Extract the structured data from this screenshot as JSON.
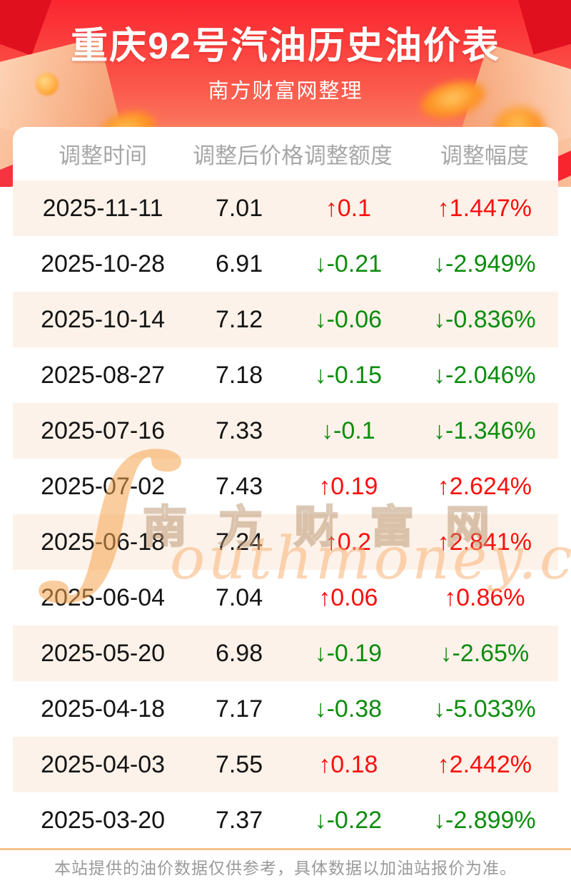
{
  "header": {
    "title": "重庆92号汽油历史油价表",
    "subtitle": "南方财富网整理"
  },
  "table": {
    "columns": [
      "调整时间",
      "调整后价格",
      "调整额度",
      "调整幅度"
    ],
    "rows": [
      {
        "date": "2025-11-11",
        "price": "7.01",
        "change": "↑0.1",
        "percent": "↑1.447%",
        "direction": "up"
      },
      {
        "date": "2025-10-28",
        "price": "6.91",
        "change": "↓-0.21",
        "percent": "↓-2.949%",
        "direction": "down"
      },
      {
        "date": "2025-10-14",
        "price": "7.12",
        "change": "↓-0.06",
        "percent": "↓-0.836%",
        "direction": "down"
      },
      {
        "date": "2025-08-27",
        "price": "7.18",
        "change": "↓-0.15",
        "percent": "↓-2.046%",
        "direction": "down"
      },
      {
        "date": "2025-07-16",
        "price": "7.33",
        "change": "↓-0.1",
        "percent": "↓-1.346%",
        "direction": "down"
      },
      {
        "date": "2025-07-02",
        "price": "7.43",
        "change": "↑0.19",
        "percent": "↑2.624%",
        "direction": "up"
      },
      {
        "date": "2025-06-18",
        "price": "7.24",
        "change": "↑0.2",
        "percent": "↑2.841%",
        "direction": "up"
      },
      {
        "date": "2025-06-04",
        "price": "7.04",
        "change": "↑0.06",
        "percent": "↑0.86%",
        "direction": "up"
      },
      {
        "date": "2025-05-20",
        "price": "6.98",
        "change": "↓-0.19",
        "percent": "↓-2.65%",
        "direction": "down"
      },
      {
        "date": "2025-04-18",
        "price": "7.17",
        "change": "↓-0.38",
        "percent": "↓-5.033%",
        "direction": "down"
      },
      {
        "date": "2025-04-03",
        "price": "7.55",
        "change": "↑0.18",
        "percent": "↑2.442%",
        "direction": "up"
      },
      {
        "date": "2025-03-20",
        "price": "7.37",
        "change": "↓-0.22",
        "percent": "↓-2.899%",
        "direction": "down"
      }
    ]
  },
  "watermark": {
    "swoosh_glyph": "∫",
    "cjk": "南方财富网",
    "latin": "outhmoney.com"
  },
  "footer": {
    "note": "本站提供的油价数据仅供参考，具体数据以加油站报价为准。"
  },
  "colors": {
    "up_red": "#fa100d",
    "down_green": "#0e8c0e",
    "row_alt_bg": "#fdf2e9",
    "banner_gradient_top": "#fb2630",
    "banner_gradient_bottom": "#fbb286",
    "footer_rule": "#f6c189",
    "column_header_gray": "#a7a7a7"
  }
}
